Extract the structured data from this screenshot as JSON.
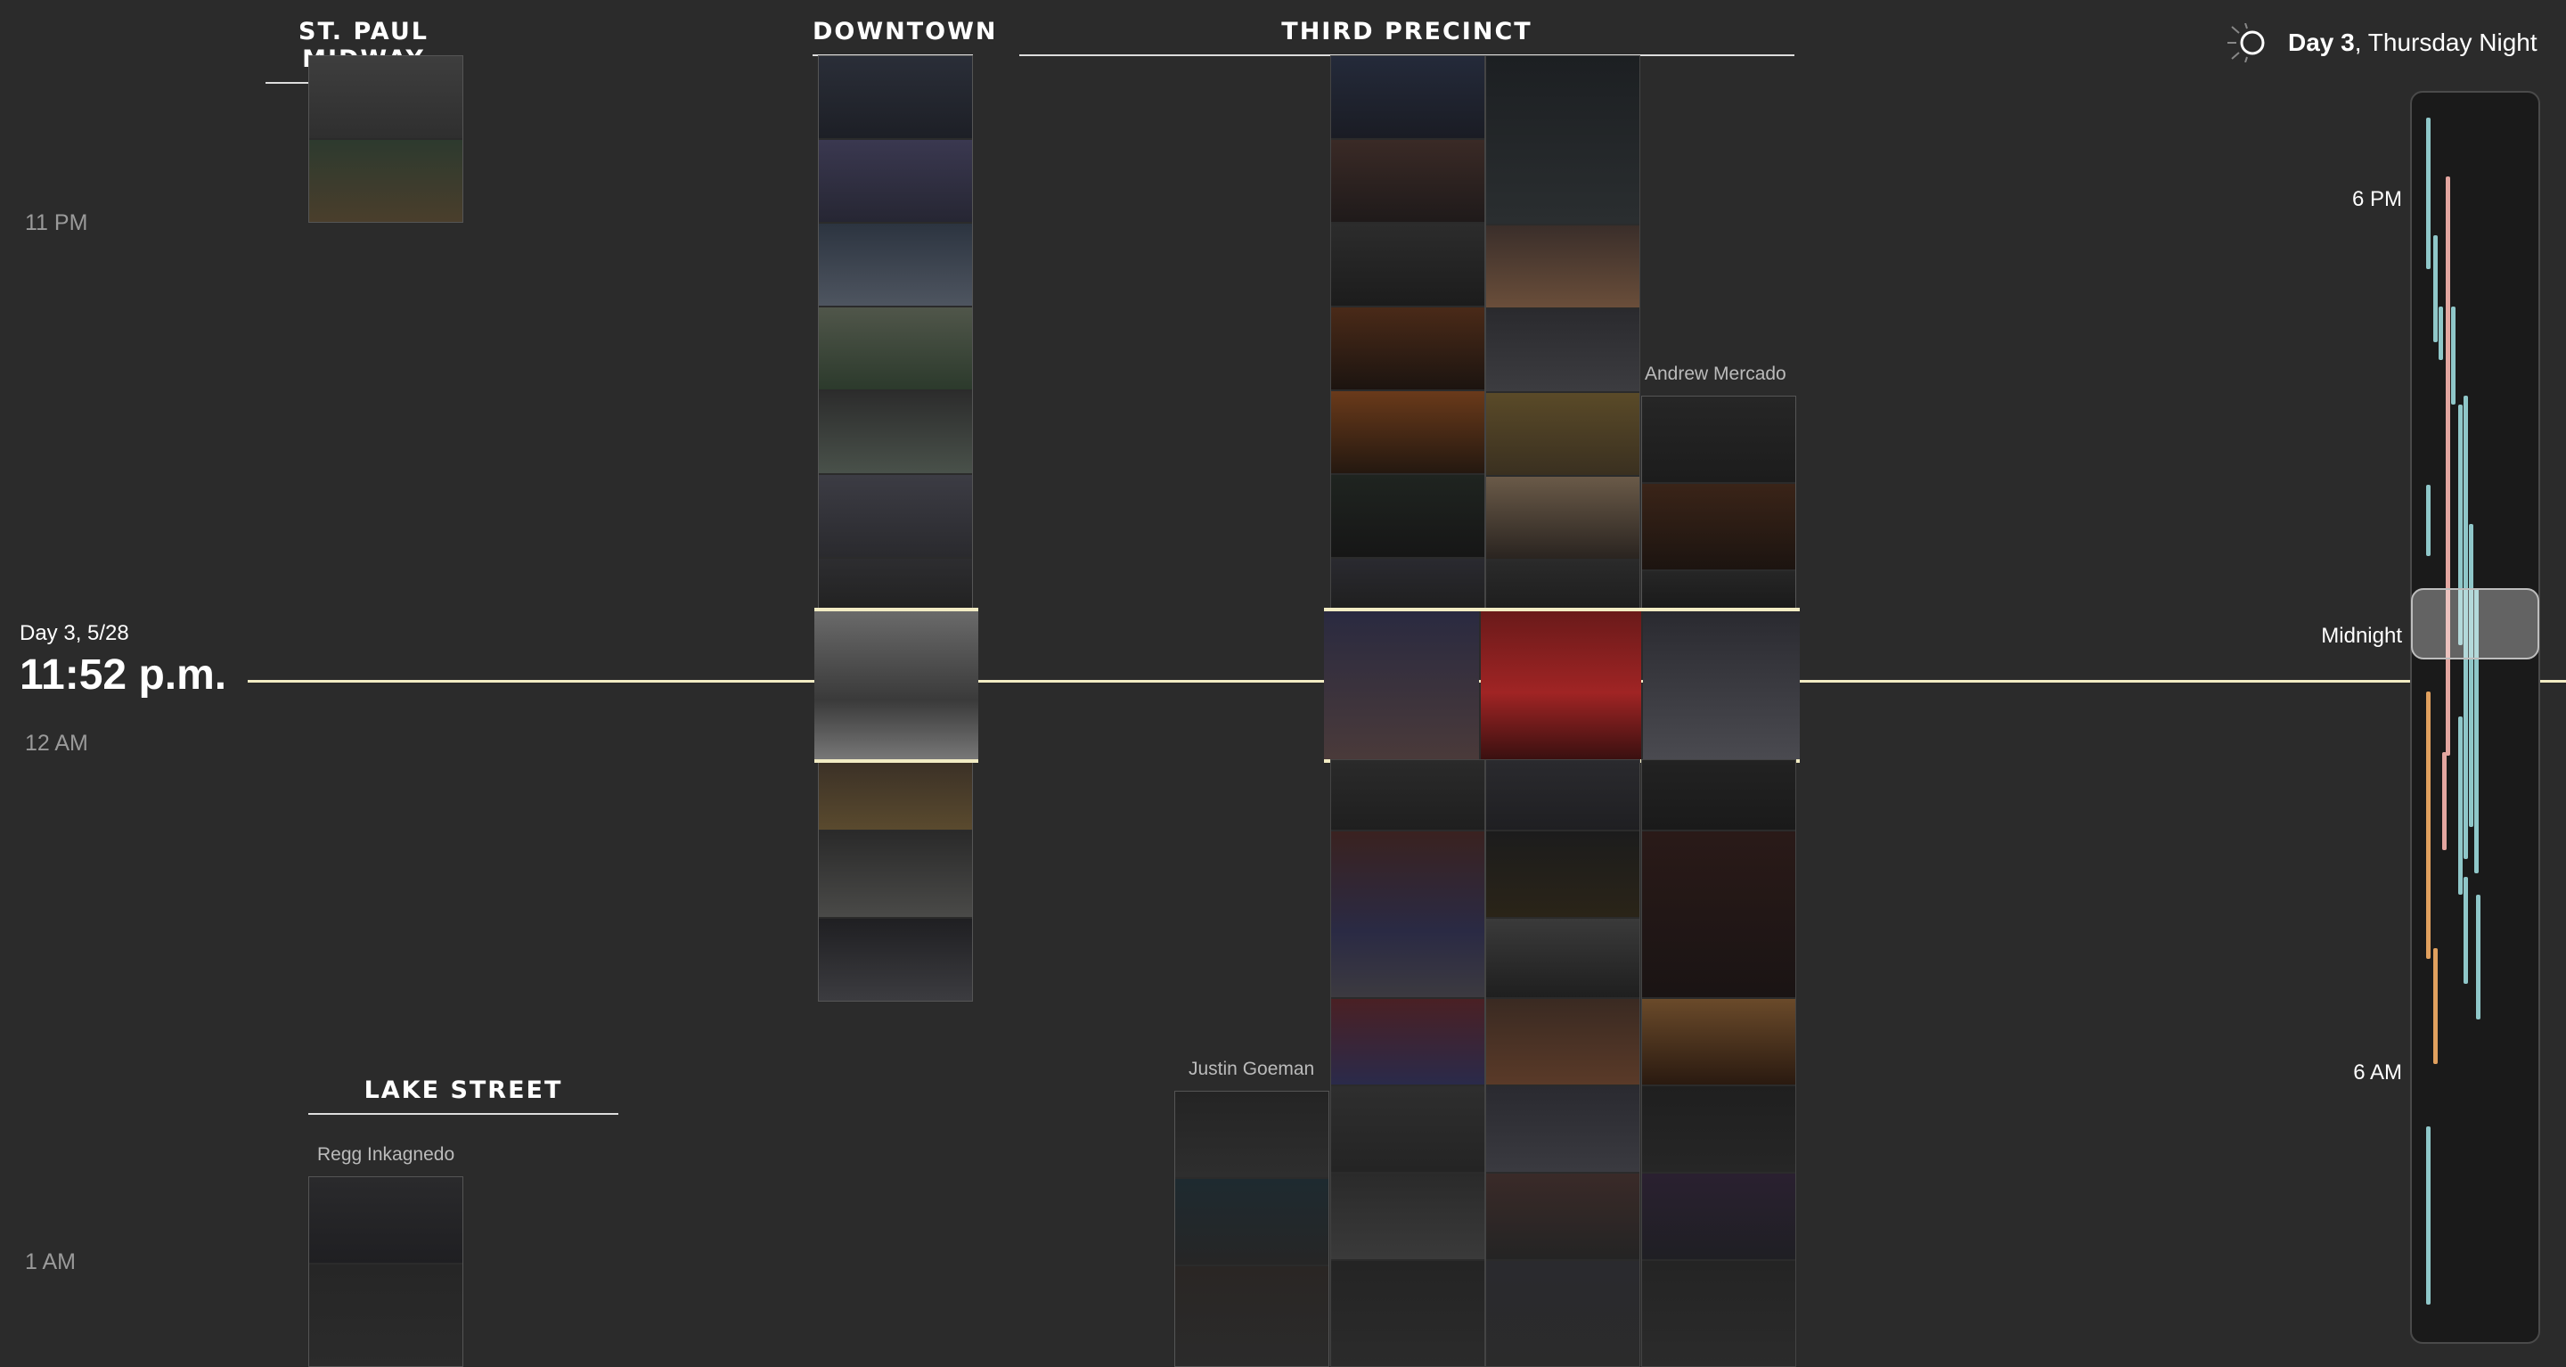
{
  "sections": {
    "st_paul": "ST. PAUL MIDWAY",
    "downtown": "DOWNTOWN",
    "third_precinct": "THIRD PRECINCT",
    "lake_street": "LAKE STREET"
  },
  "time_labels": {
    "t11pm": "11 PM",
    "t12am": "12 AM",
    "t1am": "1 AM"
  },
  "current": {
    "date": "Day 3, 5/28",
    "time": "11:52 p.m."
  },
  "day_header": {
    "day": "Day 3",
    "rest": ", Thursday Night"
  },
  "videographers": {
    "mercado": "Andrew Mercado",
    "goeman": "Justin Goeman",
    "inkagnedo": "Regg Inkagnedo"
  },
  "minimap": {
    "label_6pm": "6 PM",
    "label_midnight": "Midnight",
    "label_6am": "6 AM",
    "colors": {
      "teal": "#8fc7c9",
      "pink": "#e3a6a0",
      "orange": "#e0a05e"
    }
  },
  "icons": {
    "sun": "sun-moon-icon"
  },
  "colors": {
    "accent_line": "#f2ecc4",
    "background": "#2b2b2b"
  }
}
